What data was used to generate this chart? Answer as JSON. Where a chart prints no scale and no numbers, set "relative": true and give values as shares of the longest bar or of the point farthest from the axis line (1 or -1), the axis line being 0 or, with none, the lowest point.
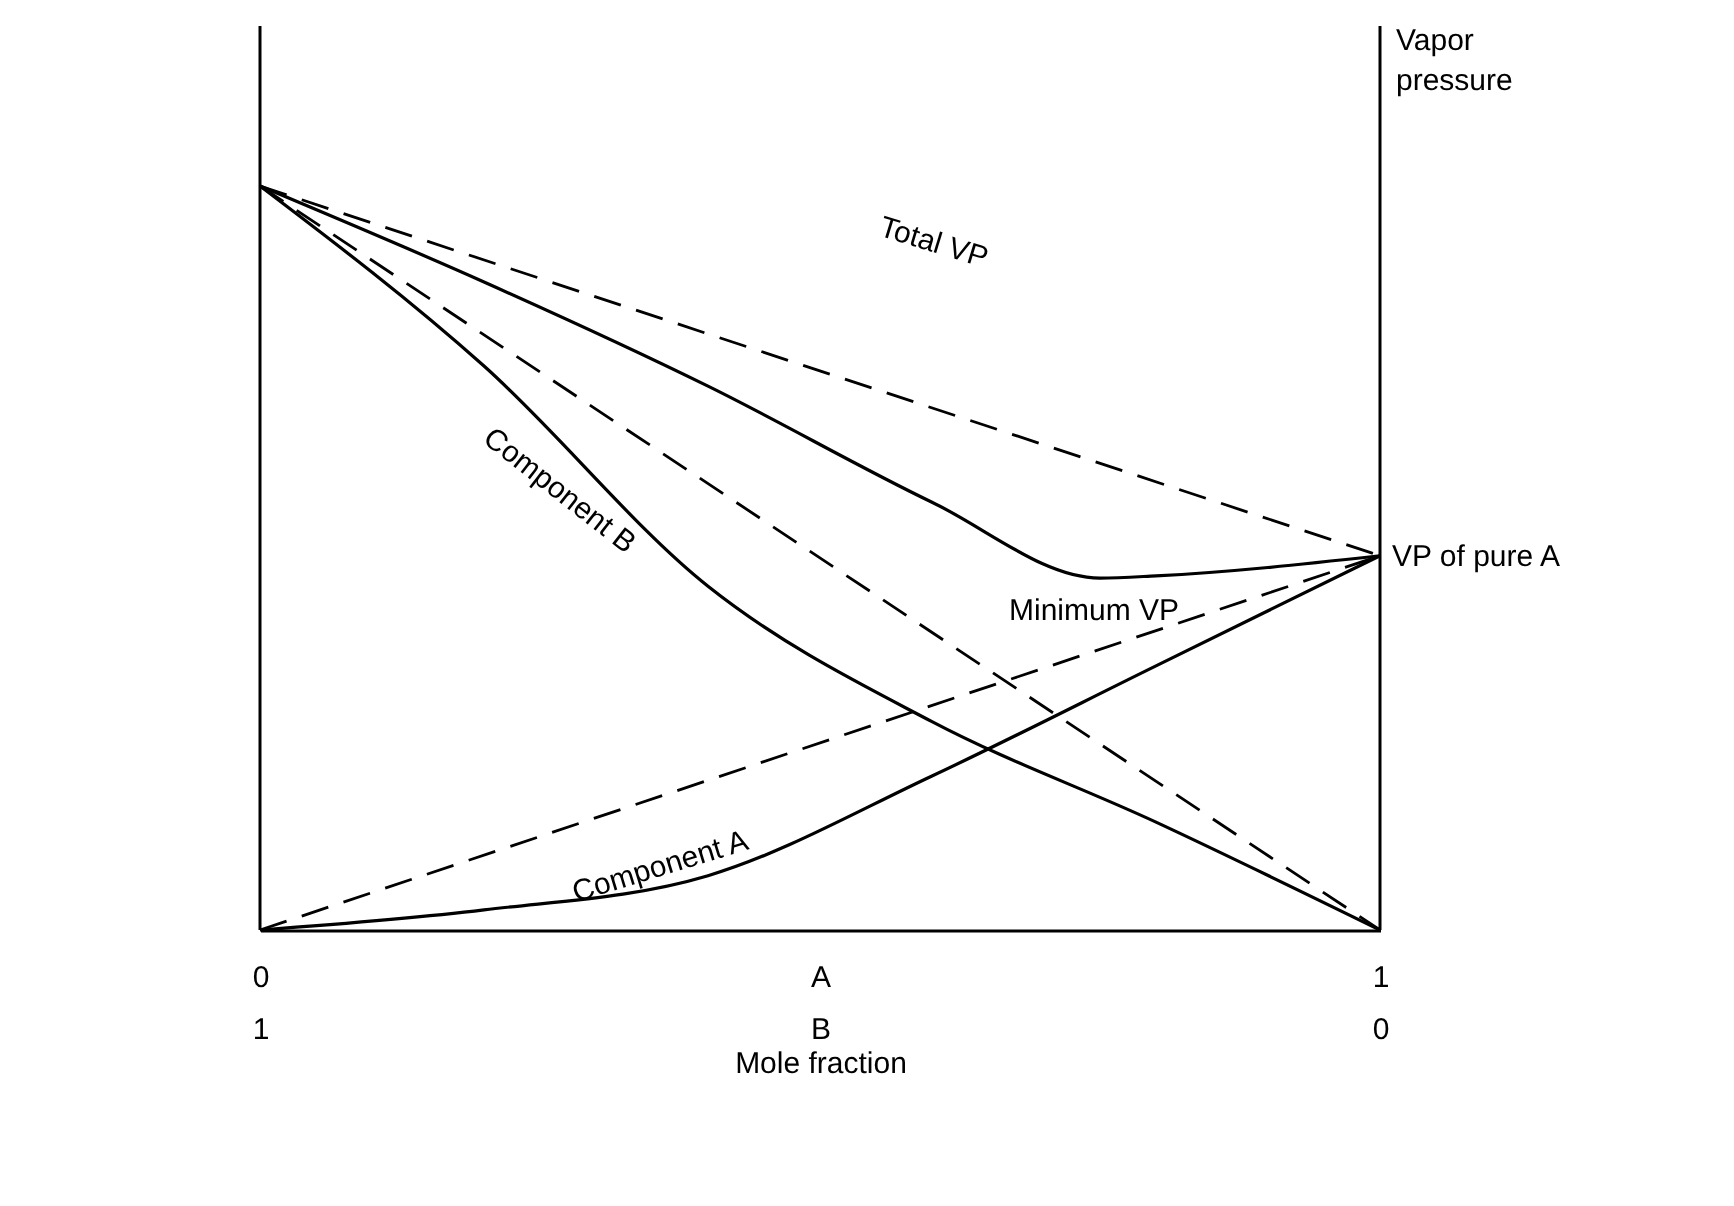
{
  "chart_data": {
    "type": "line",
    "relative": true,
    "xlabel": "Mole fraction",
    "ylabel": "Vapor pressure",
    "xlim": [
      0,
      1
    ],
    "xticks": [
      0,
      {
        "value": 0.5,
        "label": "A"
      },
      1
    ],
    "x2lim": [
      1,
      0
    ],
    "x2ticks": [
      1,
      {
        "value": 0.5,
        "label": "B"
      },
      0
    ],
    "grid": false,
    "marker": "none",
    "series": [
      {
        "color": "#000000",
        "line_style": "dashed",
        "x": [
          0,
          1
        ],
        "values": [
          1,
          0.503
        ]
      },
      {
        "color": "#000000",
        "line_style": "dashed",
        "x": [
          0,
          1
        ],
        "values": [
          1,
          0
        ]
      },
      {
        "color": "#000000",
        "line_style": "dashed",
        "x": [
          0,
          1
        ],
        "values": [
          0,
          0.503
        ]
      },
      {
        "color": "#000000",
        "line_style": "solid",
        "x": [
          0,
          0.2,
          0.4,
          0.6,
          0.75,
          0.8,
          1
        ],
        "values": [
          1,
          0.871,
          0.731,
          0.575,
          0.473,
          0.476,
          0.503
        ]
      },
      {
        "color": "#000000",
        "line_style": "solid",
        "x": [
          0,
          0.2,
          0.4,
          0.6,
          0.8,
          1
        ],
        "values": [
          1,
          0.758,
          0.462,
          0.28,
          0.145,
          0
        ]
      },
      {
        "color": "#000000",
        "line_style": "solid",
        "x": [
          0,
          0.2,
          0.4,
          0.6,
          0.8,
          1
        ],
        "values": [
          0,
          0.027,
          0.073,
          0.207,
          0.355,
          0.503
        ]
      }
    ],
    "ref_lines": [
      {
        "axis": "x",
        "value": 0
      },
      {
        "axis": "x",
        "value": 1
      }
    ],
    "annotations": [
      "Total VP",
      "Component B",
      "Minimum VP",
      "Component A",
      {
        "text": "VP of pure A",
        "x": 1,
        "y": 0.503
      }
    ]
  }
}
